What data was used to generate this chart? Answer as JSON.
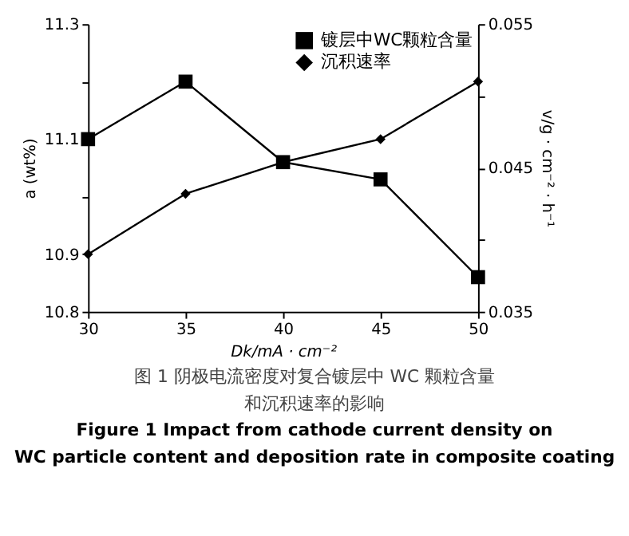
{
  "chart_data": {
    "type": "line",
    "x": [
      30,
      35,
      40,
      45,
      50
    ],
    "series": [
      {
        "name": "镀层中WC颗粒含量",
        "color": "#000000",
        "marker": "square",
        "values": [
          11.1,
          11.2,
          11.06,
          11.03,
          10.86
        ]
      },
      {
        "name": "沉积速率",
        "color": "#000000",
        "marker": "diamond",
        "axis": "y2",
        "values": [
          0.039,
          0.0432,
          0.0454,
          0.047,
          0.051
        ]
      }
    ],
    "xlabel": "Dk/mA · cm⁻²",
    "ylabel": "a (wt%)",
    "y2label": "v/g · cm⁻² · h⁻¹",
    "xlim": [
      30,
      50
    ],
    "xticks": [
      30,
      35,
      40,
      45,
      50
    ],
    "ylim": [
      10.8,
      11.3
    ],
    "yticks": [
      10.8,
      10.9,
      {
        "value": 11.0,
        "label": null
      },
      11.1,
      {
        "value": 11.2,
        "label": null
      },
      11.3
    ],
    "y2lim": [
      0.035,
      0.055
    ],
    "y2ticks": [
      0.035,
      {
        "value": 0.04,
        "label": null
      },
      0.045,
      {
        "value": 0.05,
        "label": null
      },
      0.055
    ],
    "grid": false,
    "legend": "top",
    "line_style": "solid",
    "annotations": [
      "图 1  阴极电流密度对复合镀层中 WC 颗粒含量",
      "和沉积速率的影响",
      "Figure 1 Impact from cathode current density on",
      "WC particle content and deposition rate in composite coating"
    ]
  }
}
